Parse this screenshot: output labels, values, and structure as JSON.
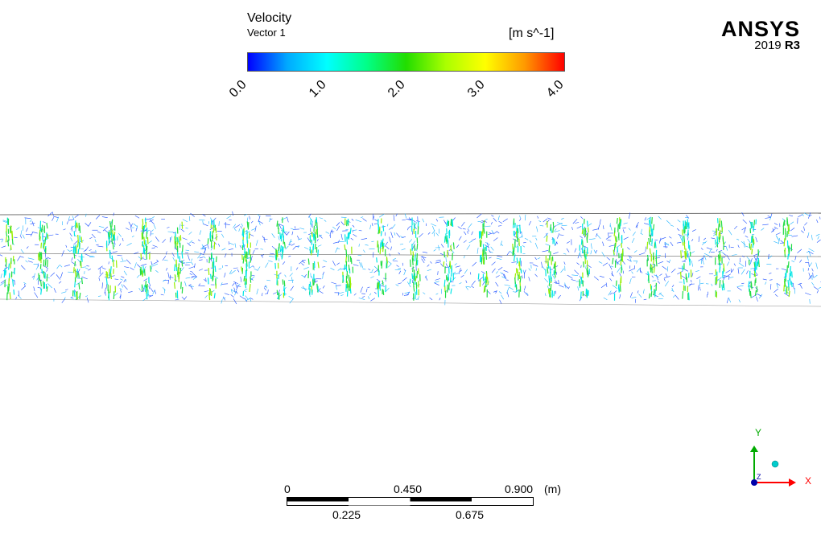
{
  "legend": {
    "title": "Velocity",
    "subtitle": "Vector 1",
    "units": "[m s^-1]",
    "ticks": [
      "0.0",
      "1.0",
      "2.0",
      "3.0",
      "4.0"
    ],
    "colormap": [
      "#0000ff",
      "#00aaff",
      "#00ffff",
      "#00ff88",
      "#22dd00",
      "#aaff00",
      "#ffff00",
      "#ff9900",
      "#ff0000"
    ]
  },
  "logo": {
    "brand": "ANSYS",
    "version_year": "2019",
    "version_release": "R3"
  },
  "scale_bar": {
    "top_labels": [
      "0",
      "0.450",
      "0.900"
    ],
    "bottom_labels": [
      "0.225",
      "0.675"
    ],
    "unit": "(m)"
  },
  "axis_triad": {
    "x_label": "X",
    "y_label": "Y",
    "z_label": "Z",
    "x_color": "#ff0000",
    "y_color": "#00aa00",
    "z_color": "#0000aa"
  }
}
